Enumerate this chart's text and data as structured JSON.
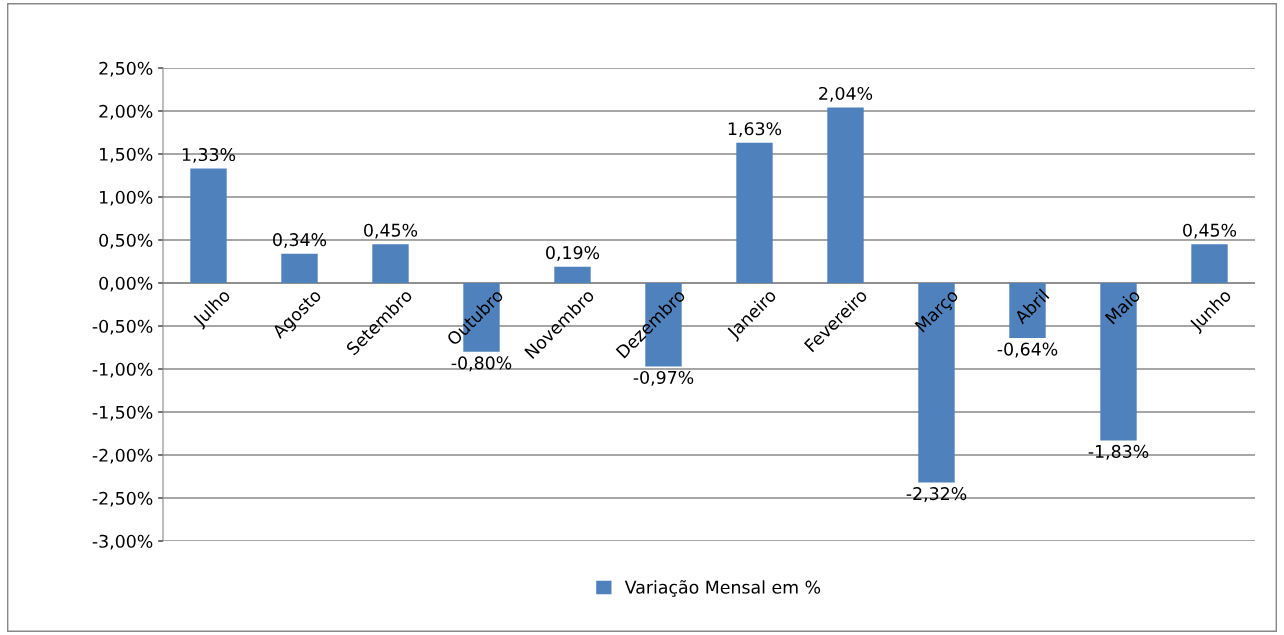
{
  "chart_data": {
    "type": "bar",
    "categories": [
      "Julho",
      "Agosto",
      "Setembro",
      "Outubro",
      "Novembro",
      "Dezembro",
      "Janeiro",
      "Fevereiro",
      "Março",
      "Abril",
      "Maio",
      "Junho"
    ],
    "series": [
      {
        "name": "Variação Mensal em %",
        "color": "#4f81bd",
        "values": [
          1.33,
          0.34,
          0.45,
          -0.8,
          0.19,
          -0.97,
          1.63,
          2.04,
          -2.32,
          -0.64,
          -1.83,
          0.45
        ],
        "value_labels": [
          "1,33%",
          "0,34%",
          "0,45%",
          "-0,80%",
          "0,19%",
          "-0,97%",
          "1,63%",
          "2,04%",
          "-2,32%",
          "-0,64%",
          "-1,83%",
          "0,45%"
        ]
      }
    ],
    "ylim": [
      -3,
      2.5
    ],
    "yticks": [
      {
        "value": -3,
        "label": "-3,00%"
      },
      {
        "value": -2.5,
        "label": "-2,50%"
      },
      {
        "value": -2,
        "label": "-2,00%"
      },
      {
        "value": -1.5,
        "label": "-1,50%"
      },
      {
        "value": -1,
        "label": "-1,00%"
      },
      {
        "value": -0.5,
        "label": "-0,50%"
      },
      {
        "value": 0,
        "label": "0,00%"
      },
      {
        "value": 0.5,
        "label": "0,50%"
      },
      {
        "value": 1,
        "label": "1,00%"
      },
      {
        "value": 1.5,
        "label": "1,50%"
      },
      {
        "value": 2,
        "label": "2,00%"
      },
      {
        "value": 2.5,
        "label": "2,50%"
      }
    ],
    "grid": "y",
    "legend": "bottom"
  }
}
